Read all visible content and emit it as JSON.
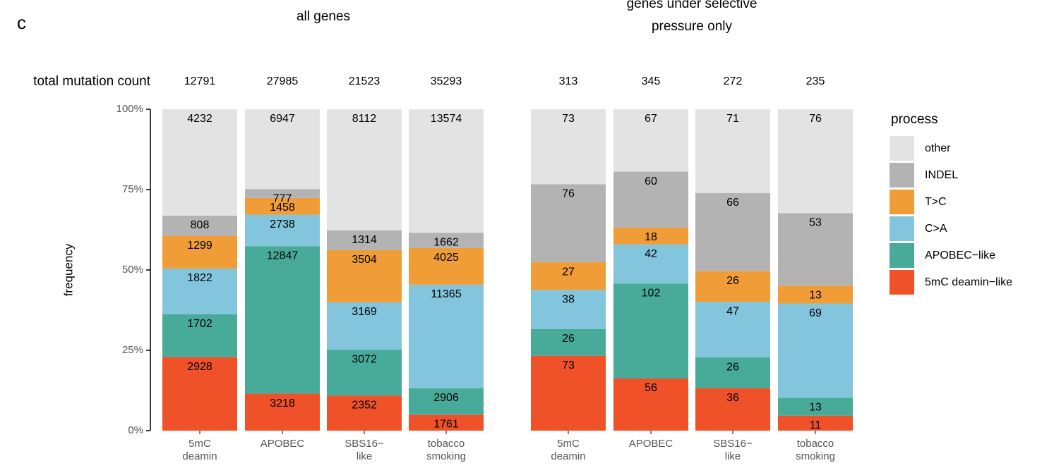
{
  "panel_label": "c",
  "total_label": "total mutation count",
  "ylabel": "frequency",
  "legend_title": "process",
  "chart_data": [
    {
      "type": "bar",
      "stacked_percent": true,
      "title": "all genes",
      "categories": [
        "5mC\ndeamin",
        "APOBEC",
        "SBS16−\nlike",
        "tobacco\nsmoking"
      ],
      "totals": [
        12791,
        27985,
        21523,
        35293
      ],
      "ylim": [
        0,
        100
      ],
      "yticks": [
        {
          "value": 0,
          "label": "0%"
        },
        {
          "value": 25,
          "label": "25%"
        },
        {
          "value": 50,
          "label": "50%"
        },
        {
          "value": 75,
          "label": "75%"
        },
        {
          "value": 100,
          "label": "100%"
        }
      ],
      "series": [
        {
          "name": "5mC deamin−like",
          "color": "#ef5228",
          "values": [
            2928,
            3218,
            2352,
            1761
          ]
        },
        {
          "name": "APOBEC−like",
          "color": "#48aa99",
          "values": [
            1702,
            12847,
            3072,
            2906
          ]
        },
        {
          "name": "C>A",
          "color": "#82c5dc",
          "values": [
            1822,
            2738,
            3169,
            11365
          ]
        },
        {
          "name": "T>C",
          "color": "#f09d37",
          "values": [
            1299,
            1458,
            3504,
            4025
          ]
        },
        {
          "name": "INDEL",
          "color": "#b3b3b3",
          "values": [
            808,
            777,
            1314,
            1662
          ]
        },
        {
          "name": "other",
          "color": "#e3e3e3",
          "values": [
            4232,
            6947,
            8112,
            13574
          ]
        }
      ]
    },
    {
      "type": "bar",
      "stacked_percent": true,
      "title": "genes under selective\npressure only",
      "categories": [
        "5mC\ndeamin",
        "APOBEC",
        "SBS16−\nlike",
        "tobacco\nsmoking"
      ],
      "totals": [
        313,
        345,
        272,
        235
      ],
      "ylim": [
        0,
        100
      ],
      "series": [
        {
          "name": "5mC deamin−like",
          "color": "#ef5228",
          "values": [
            73,
            56,
            36,
            11
          ]
        },
        {
          "name": "APOBEC−like",
          "color": "#48aa99",
          "values": [
            26,
            102,
            26,
            13
          ]
        },
        {
          "name": "C>A",
          "color": "#82c5dc",
          "values": [
            38,
            42,
            47,
            69
          ]
        },
        {
          "name": "T>C",
          "color": "#f09d37",
          "values": [
            27,
            18,
            26,
            13
          ]
        },
        {
          "name": "INDEL",
          "color": "#b3b3b3",
          "values": [
            76,
            60,
            66,
            53
          ]
        },
        {
          "name": "other",
          "color": "#e3e3e3",
          "values": [
            73,
            67,
            71,
            76
          ]
        }
      ]
    }
  ]
}
